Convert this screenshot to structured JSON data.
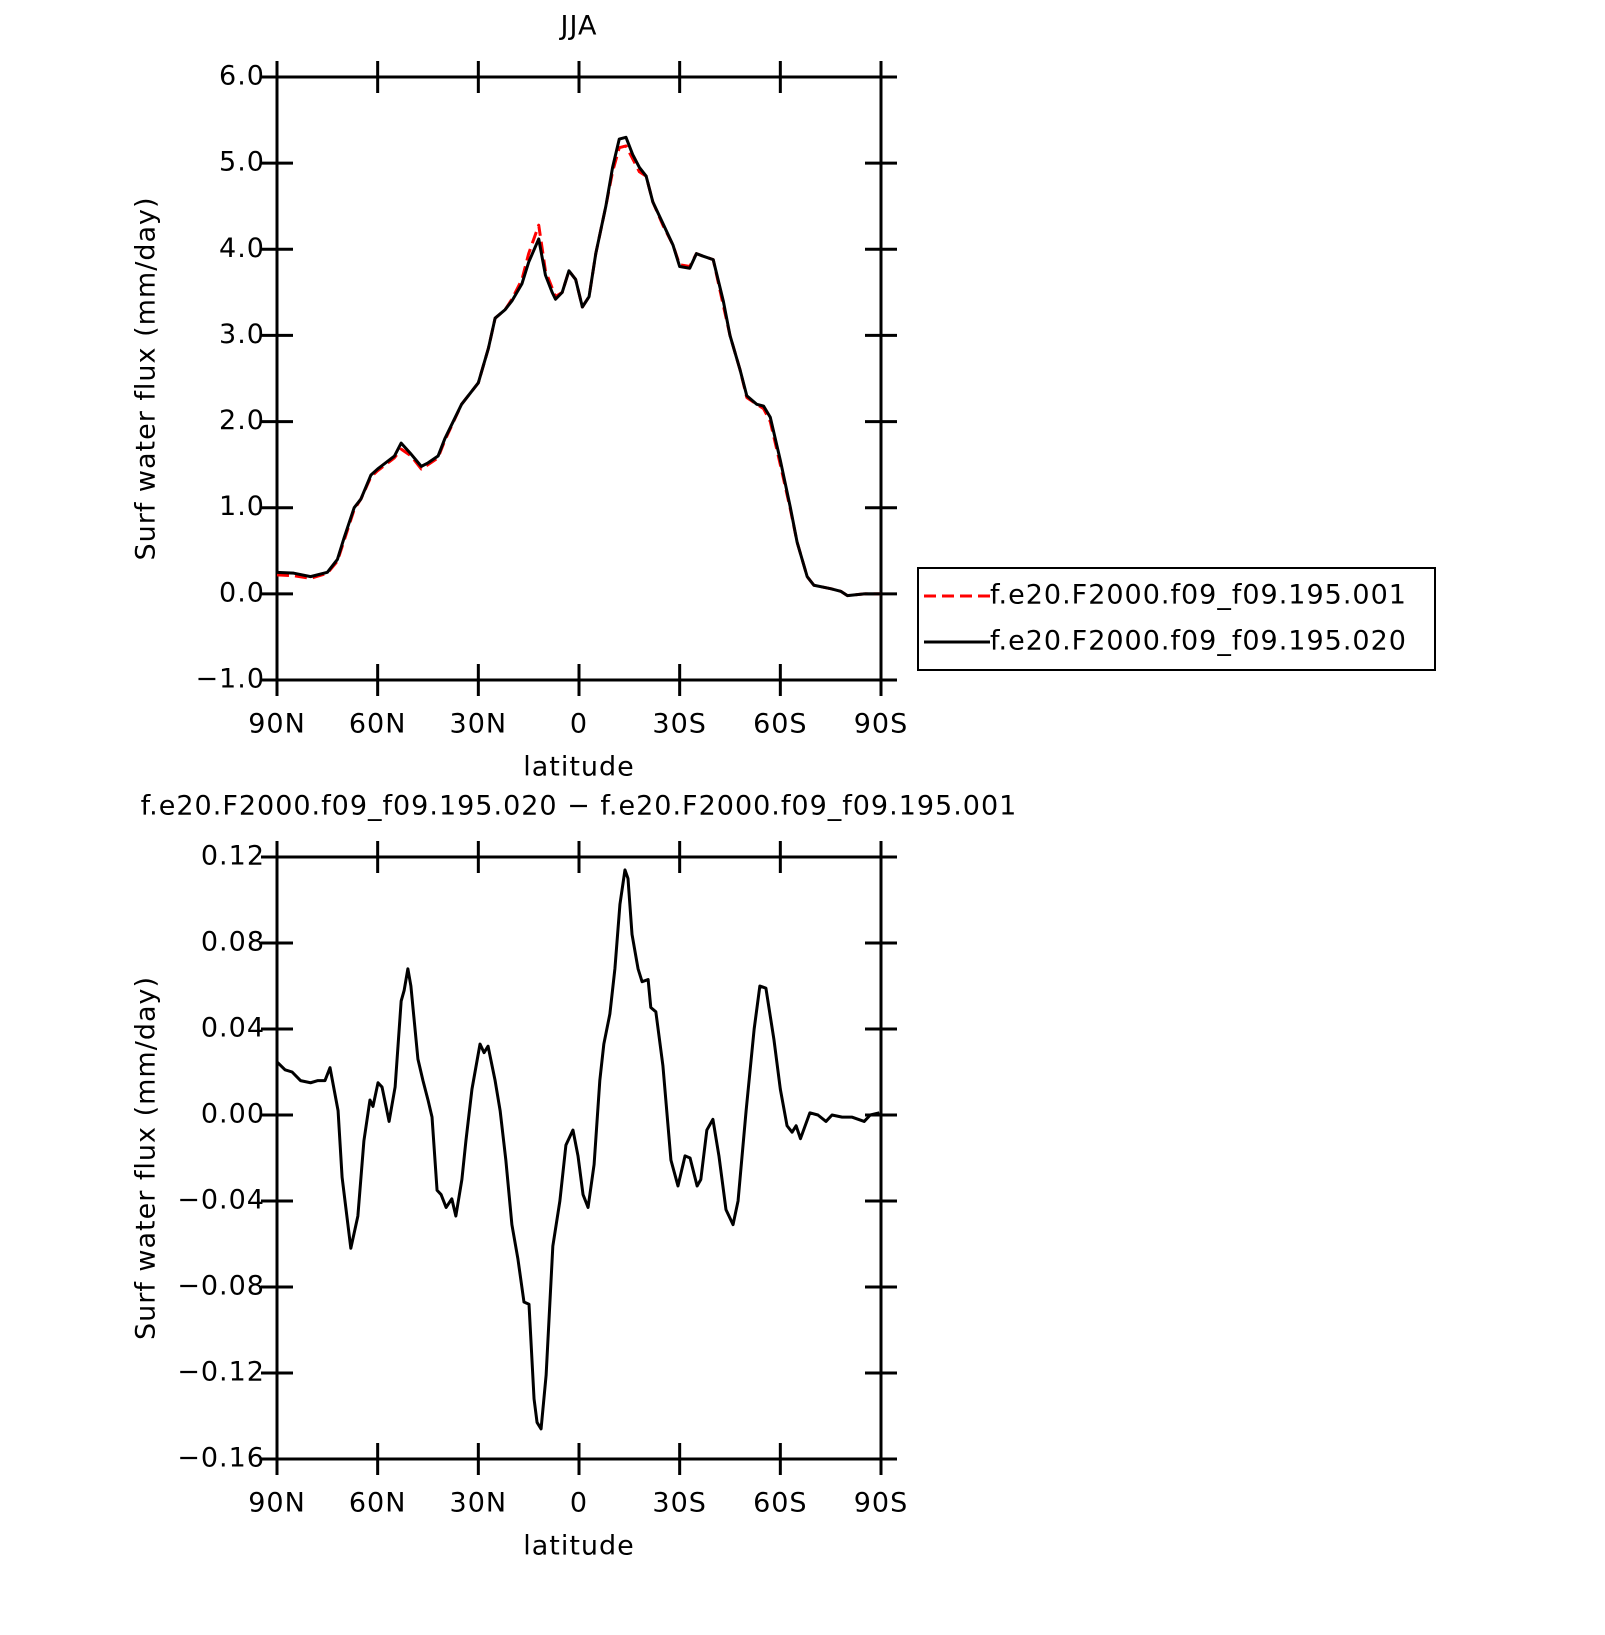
{
  "chart_data": [
    {
      "type": "line",
      "title": "JJA",
      "ylabel": "Surf water flux (mm/day)",
      "xlabel": "latitude",
      "xlim": [
        90,
        -90
      ],
      "ylim": [
        -1,
        6
      ],
      "xticks": [
        {
          "value": 90,
          "label": "90N"
        },
        {
          "value": 60,
          "label": "60N"
        },
        {
          "value": 30,
          "label": "30N"
        },
        0,
        {
          "value": -30,
          "label": "30S"
        },
        {
          "value": -60,
          "label": "60S"
        },
        {
          "value": -90,
          "label": "90S"
        }
      ],
      "yticks": [
        {
          "value": -1,
          "label": "−1.0"
        },
        {
          "value": 0,
          "label": "0.0"
        },
        {
          "value": 1,
          "label": "1.0"
        },
        {
          "value": 2,
          "label": "2.0"
        },
        {
          "value": 3,
          "label": "3.0"
        },
        {
          "value": 4,
          "label": "4.0"
        },
        {
          "value": 5,
          "label": "5.0"
        },
        {
          "value": 6,
          "label": "6.0"
        }
      ],
      "legend": "right",
      "x": [
        90,
        85,
        80,
        75,
        72,
        70,
        67,
        65,
        62,
        60,
        55,
        53,
        50,
        47,
        45,
        42,
        40,
        35,
        30,
        27,
        25,
        22,
        20,
        17,
        15,
        12,
        10,
        8,
        7,
        5,
        3,
        1,
        -1,
        -3,
        -5,
        -8,
        -10,
        -12,
        -14,
        -16,
        -18,
        -20,
        -22,
        -25,
        -28,
        -30,
        -33,
        -35,
        -37,
        -40,
        -43,
        -45,
        -48,
        -50,
        -53,
        -55,
        -57,
        -60,
        -63,
        -65,
        -68,
        -70,
        -75,
        -78,
        -80,
        -85,
        -90
      ],
      "series": [
        {
          "name": "f.e20.F2000.f09_f09.195.001",
          "color": "#ff0000",
          "style": "dashed",
          "values": [
            0.22,
            0.21,
            0.18,
            0.24,
            0.38,
            0.62,
            0.98,
            1.1,
            1.36,
            1.43,
            1.58,
            1.68,
            1.6,
            1.45,
            1.5,
            1.58,
            1.78,
            2.2,
            2.45,
            2.85,
            3.2,
            3.3,
            3.42,
            3.65,
            3.95,
            4.28,
            3.75,
            3.55,
            3.45,
            3.5,
            3.75,
            3.65,
            3.33,
            3.45,
            3.95,
            4.5,
            4.9,
            5.18,
            5.2,
            5.05,
            4.9,
            4.85,
            4.55,
            4.28,
            4.05,
            3.82,
            3.8,
            3.95,
            3.92,
            3.88,
            3.35,
            3.0,
            2.6,
            2.28,
            2.2,
            2.15,
            2.0,
            1.5,
            0.98,
            0.6,
            0.2,
            0.1,
            0.06,
            0.03,
            -0.02,
            0.0,
            0.0
          ]
        },
        {
          "name": "f.e20.F2000.f09_f09.195.020",
          "color": "#000000",
          "style": "solid",
          "values": [
            0.25,
            0.24,
            0.2,
            0.25,
            0.4,
            0.65,
            1.0,
            1.1,
            1.38,
            1.45,
            1.6,
            1.75,
            1.62,
            1.48,
            1.52,
            1.6,
            1.8,
            2.2,
            2.45,
            2.85,
            3.2,
            3.3,
            3.4,
            3.6,
            3.85,
            4.12,
            3.7,
            3.5,
            3.42,
            3.5,
            3.75,
            3.65,
            3.33,
            3.45,
            3.95,
            4.5,
            4.95,
            5.28,
            5.3,
            5.1,
            4.95,
            4.85,
            4.55,
            4.3,
            4.05,
            3.8,
            3.78,
            3.95,
            3.92,
            3.88,
            3.4,
            3.0,
            2.6,
            2.3,
            2.2,
            2.18,
            2.05,
            1.55,
            1.0,
            0.6,
            0.2,
            0.1,
            0.06,
            0.03,
            -0.02,
            0.0,
            0.0
          ]
        }
      ]
    },
    {
      "type": "line",
      "title": "f.e20.F2000.f09_f09.195.020 − f.e20.F2000.f09_f09.195.001",
      "ylabel": "Surf water flux (mm/day)",
      "xlabel": "latitude",
      "xlim": [
        90,
        -90
      ],
      "ylim": [
        -0.16,
        0.12
      ],
      "xticks": [
        {
          "value": 90,
          "label": "90N"
        },
        {
          "value": 60,
          "label": "60N"
        },
        {
          "value": 30,
          "label": "30N"
        },
        0,
        {
          "value": -30,
          "label": "30S"
        },
        {
          "value": -60,
          "label": "60S"
        },
        {
          "value": -90,
          "label": "90S"
        }
      ],
      "yticks": [
        {
          "value": -0.16,
          "label": "−0.16"
        },
        {
          "value": -0.12,
          "label": "−0.12"
        },
        {
          "value": -0.08,
          "label": "−0.08"
        },
        {
          "value": -0.04,
          "label": "−0.04"
        },
        {
          "value": 0,
          "label": "0.00"
        },
        0.04,
        0.08,
        0.12
      ],
      "color": "#000000",
      "x": [
        90,
        87.6,
        85.5,
        83,
        80,
        77.8,
        75.7,
        74.2,
        71.8,
        70.6,
        68,
        65.9,
        64.1,
        62.3,
        61.4,
        59.9,
        58.7,
        56.6,
        54.8,
        53,
        52.1,
        51,
        50.1,
        48,
        46.5,
        45,
        43.8,
        42.3,
        41.1,
        39.6,
        37.9,
        36.7,
        34.9,
        33.7,
        31.9,
        29.5,
        28.3,
        27.1,
        25,
        23.5,
        21.8,
        20,
        18.2,
        16.4,
        14.9,
        13.4,
        12.5,
        11.3,
        9.8,
        7.8,
        5.7,
        3.9,
        1.8,
        0.3,
        -1.2,
        -2.7,
        -4.5,
        -6.2,
        -7.4,
        -9.2,
        -10.7,
        -12.2,
        -13.7,
        -14.6,
        -15.8,
        -17.6,
        -18.8,
        -20.6,
        -21.4,
        -22.9,
        -25,
        -27.4,
        -29.5,
        -31.6,
        -33.1,
        -35.2,
        -36.3,
        -38.1,
        -39.9,
        -41.7,
        -43.8,
        -45.9,
        -47.4,
        -49.8,
        -52.2,
        -53.9,
        -55.7,
        -58.1,
        -60,
        -62,
        -63.5,
        -64.7,
        -66,
        -68.8,
        -71.2,
        -73.6,
        -75.4,
        -78.4,
        -81.4,
        -85,
        -86.8,
        -89.5
      ],
      "values": [
        0.0247,
        0.021,
        0.02,
        0.016,
        0.015,
        0.016,
        0.016,
        0.022,
        0.002,
        -0.029,
        -0.062,
        -0.047,
        -0.012,
        0.007,
        0.004,
        0.015,
        0.013,
        -0.003,
        0.013,
        0.053,
        0.058,
        0.068,
        0.06,
        0.026,
        0.016,
        0.007,
        -0.001,
        -0.035,
        -0.037,
        -0.043,
        -0.039,
        -0.047,
        -0.03,
        -0.012,
        0.012,
        0.033,
        0.029,
        0.032,
        0.016,
        0.002,
        -0.021,
        -0.051,
        -0.067,
        -0.087,
        -0.088,
        -0.132,
        -0.143,
        -0.146,
        -0.121,
        -0.061,
        -0.04,
        -0.014,
        -0.007,
        -0.019,
        -0.037,
        -0.043,
        -0.023,
        0.016,
        0.033,
        0.047,
        0.068,
        0.098,
        0.114,
        0.11,
        0.084,
        0.068,
        0.062,
        0.063,
        0.05,
        0.048,
        0.023,
        -0.021,
        -0.033,
        -0.019,
        -0.02,
        -0.033,
        -0.03,
        -0.007,
        -0.002,
        -0.019,
        -0.044,
        -0.051,
        -0.04,
        0.002,
        0.04,
        0.06,
        0.059,
        0.035,
        0.012,
        -0.005,
        -0.008,
        -0.005,
        -0.011,
        0.001,
        0.0,
        -0.003,
        0.0,
        -0.001,
        -0.001,
        -0.003,
        0.0,
        0.001
      ]
    }
  ]
}
